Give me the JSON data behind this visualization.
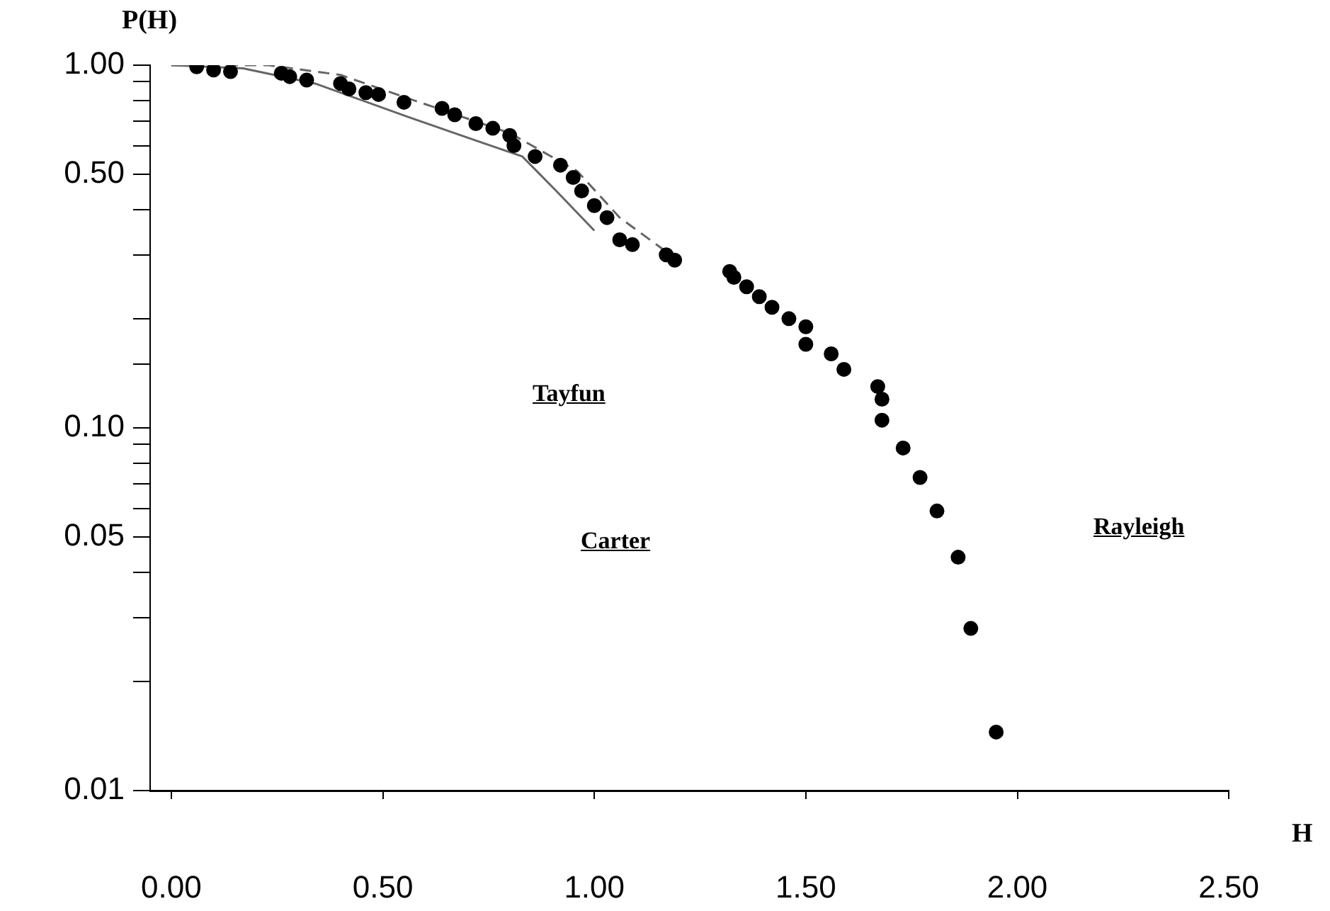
{
  "chart_data": {
    "type": "scatter",
    "xlabel": "H",
    "ylabel": "P(H)",
    "xlim": [
      -0.05,
      2.5
    ],
    "xticks": [
      {
        "value": 0,
        "label": "0.00"
      },
      {
        "value": 0.5,
        "label": "0.50"
      },
      {
        "value": 1,
        "label": "1.00"
      },
      {
        "value": 1.5,
        "label": "1.50"
      },
      {
        "value": 2,
        "label": "2.00"
      },
      {
        "value": 2.5,
        "label": "2.50"
      }
    ],
    "ylim": [
      0.01,
      1
    ],
    "log": "y",
    "yticks": [
      {
        "value": 1,
        "label": "1.00"
      },
      {
        "value": 0.9,
        "label": null
      },
      {
        "value": 0.8,
        "label": null
      },
      {
        "value": 0.7,
        "label": null
      },
      {
        "value": 0.6,
        "label": null
      },
      {
        "value": 0.5,
        "label": "0.50"
      },
      {
        "value": 0.4,
        "label": null
      },
      {
        "value": 0.3,
        "label": null
      },
      {
        "value": 0.2,
        "label": null
      },
      {
        "value": 0.15,
        "label": null
      },
      {
        "value": 0.1,
        "label": "0.10"
      },
      {
        "value": 0.09,
        "label": null
      },
      {
        "value": 0.08,
        "label": null
      },
      {
        "value": 0.07,
        "label": null
      },
      {
        "value": 0.06,
        "label": null
      },
      {
        "value": 0.05,
        "label": "0.05"
      },
      {
        "value": 0.04,
        "label": null
      },
      {
        "value": 0.03,
        "label": null
      },
      {
        "value": 0.02,
        "label": null
      },
      {
        "value": 0.01,
        "label": "0.01"
      }
    ],
    "grid": false,
    "legend": false,
    "annotations": [
      "Tayfun",
      "Carter",
      "Rayleigh"
    ],
    "series": [
      {
        "color": "#000000",
        "marker": "circle",
        "x": [
          0.06,
          0.1,
          0.14,
          0.26,
          0.28,
          0.32,
          0.4,
          0.42,
          0.46,
          0.49,
          0.55,
          0.64,
          0.67,
          0.72,
          0.76,
          0.8,
          0.81,
          0.86,
          0.92,
          0.95,
          0.97,
          1.0,
          1.03,
          1.06,
          1.09,
          1.17,
          1.19,
          1.32,
          1.33,
          1.36,
          1.39,
          1.42,
          1.46,
          1.5,
          1.5,
          1.56,
          1.59,
          1.67,
          1.68,
          1.68,
          1.73,
          1.77,
          1.81,
          1.86,
          1.89,
          1.95
        ],
        "values": [
          0.99,
          0.97,
          0.96,
          0.95,
          0.93,
          0.91,
          0.89,
          0.86,
          0.84,
          0.83,
          0.79,
          0.76,
          0.73,
          0.69,
          0.67,
          0.64,
          0.6,
          0.56,
          0.53,
          0.49,
          0.45,
          0.41,
          0.38,
          0.33,
          0.32,
          0.3,
          0.29,
          0.27,
          0.26,
          0.245,
          0.23,
          0.215,
          0.2,
          0.19,
          0.17,
          0.16,
          0.145,
          0.13,
          0.12,
          0.105,
          0.088,
          0.073,
          0.059,
          0.044,
          0.028,
          0.0145
        ]
      },
      {
        "type": "line",
        "color": "#666666",
        "marker": "none",
        "line_style": "solid",
        "x": [
          0.0,
          0.17,
          0.34,
          0.56,
          0.72,
          0.83,
          0.91,
          1.0
        ],
        "values": [
          1.0,
          0.98,
          0.89,
          0.72,
          0.62,
          0.56,
          0.45,
          0.35
        ]
      },
      {
        "type": "line",
        "color": "#666666",
        "marker": "none",
        "line_style": "dashed",
        "x": [
          0.0,
          0.23,
          0.4,
          0.56,
          0.8,
          0.96,
          1.06,
          1.18
        ],
        "values": [
          1.0,
          1.0,
          0.94,
          0.81,
          0.65,
          0.51,
          0.38,
          0.3
        ]
      }
    ]
  }
}
